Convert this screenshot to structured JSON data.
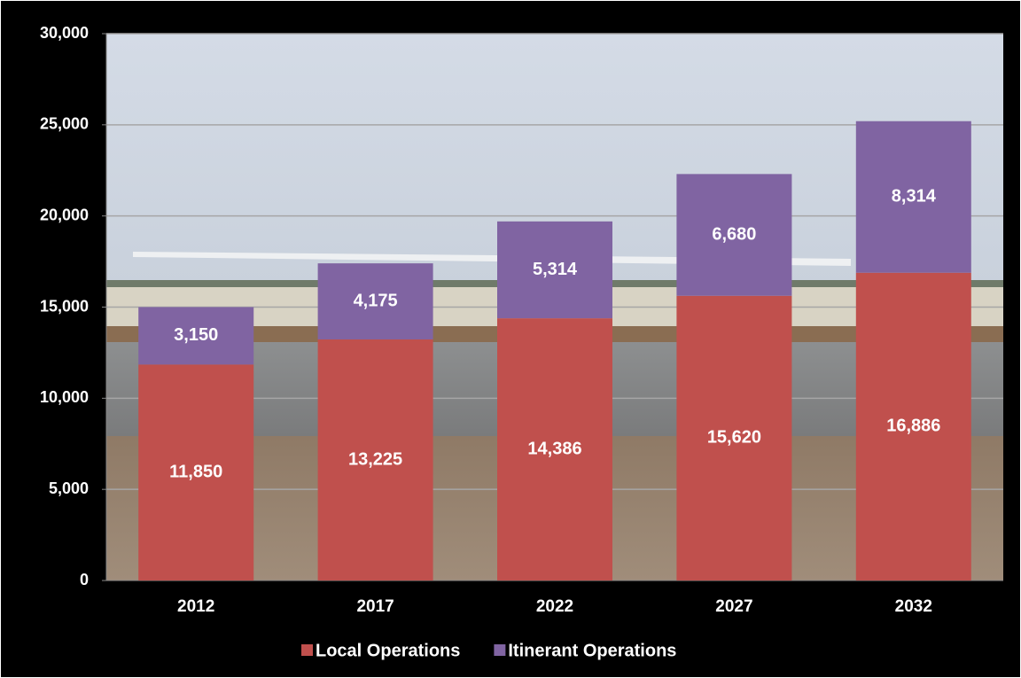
{
  "chart_data": {
    "type": "stacked_bar",
    "categories": [
      "2012",
      "2017",
      "2022",
      "2027",
      "2032"
    ],
    "series": [
      {
        "name": "Local Operations",
        "color": "#c0504d",
        "values": [
          11850,
          13225,
          14386,
          15620,
          16886
        ],
        "value_labels": [
          "11,850",
          "13,225",
          "14,386",
          "15,620",
          "16,886"
        ]
      },
      {
        "name": "Itinerant Operations",
        "color": "#8064a2",
        "values": [
          3150,
          4175,
          5314,
          6680,
          8314
        ],
        "value_labels": [
          "3,150",
          "4,175",
          "5,314",
          "6,680",
          "8,314"
        ]
      }
    ],
    "ylim": [
      0,
      30000
    ],
    "yticks": [
      0,
      {
        "value": 5000,
        "label": "5,000"
      },
      {
        "value": 10000,
        "label": "10,000"
      },
      {
        "value": 15000,
        "label": "15,000"
      },
      {
        "value": 20000,
        "label": "20,000"
      },
      {
        "value": 25000,
        "label": "25,000"
      },
      {
        "value": 30000,
        "label": "30,000"
      }
    ],
    "grid": true,
    "legend": "bottom"
  }
}
